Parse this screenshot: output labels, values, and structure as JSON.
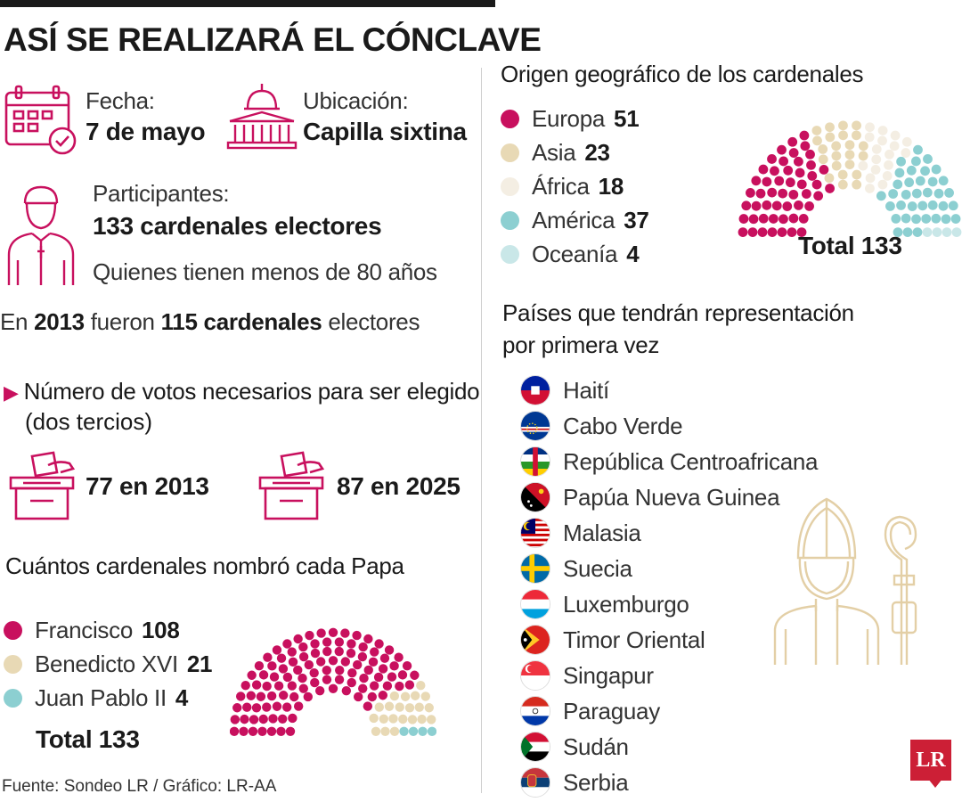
{
  "title": "ASÍ SE REALIZARÁ EL CÓNCLAVE",
  "fecha": {
    "label": "Fecha:",
    "value": "7 de mayo"
  },
  "ubicacion": {
    "label": "Ubicación:",
    "value": "Capilla sixtina"
  },
  "participantes": {
    "label": "Participantes:",
    "value": "133 cardenales electores",
    "note": "Quienes tienen menos de 80 años"
  },
  "electores_2013": {
    "pre": "En",
    "year": "2013",
    "mid": "fueron",
    "count": "115 cardenales",
    "post": "electores"
  },
  "votos": {
    "heading_line1": "Número de votos necesarios para ser elegido",
    "heading_line2": "(dos tercios)",
    "item1": "77 en 2013",
    "item2": "87 en 2025"
  },
  "papas": {
    "heading": "Cuántos cardenales nombró cada Papa",
    "total": "Total 133"
  },
  "origen": {
    "heading": "Origen geográfico de los cardenales",
    "total": "Total 133"
  },
  "paises": {
    "heading_line1": "Países que tendrán representación",
    "heading_line2": "por primera vez",
    "items": [
      "Haití",
      "Cabo Verde",
      "República Centroafricana",
      "Papúa Nueva Guinea",
      "Malasia",
      "Suecia",
      "Luxemburgo",
      "Timor Oriental",
      "Singapur",
      "Paraguay",
      "Sudán",
      "Serbia"
    ]
  },
  "source": "Fuente: Sondeo LR / Gráfico: LR-AA",
  "logo": "LR",
  "colors": {
    "accent": "#c8105e",
    "beige": "#e8d9b5",
    "cream": "#f4eee3",
    "teal": "#8ccfd1",
    "lightblue": "#c9e7e8",
    "icon_stroke": "#c8105e"
  },
  "chart_data": [
    {
      "type": "pie",
      "style": "parliament-hemicycle",
      "title": "Cuántos cardenales nombró cada Papa",
      "categories": [
        "Francisco",
        "Benedicto XVI",
        "Juan Pablo II"
      ],
      "values": [
        108,
        21,
        4
      ],
      "colors": [
        "#c8105e",
        "#e8d9b5",
        "#8ccfd1"
      ],
      "total": 133
    },
    {
      "type": "pie",
      "style": "parliament-hemicycle",
      "title": "Origen geográfico de los cardenales",
      "categories": [
        "Europa",
        "Asia",
        "África",
        "América",
        "Oceanía"
      ],
      "values": [
        51,
        23,
        18,
        37,
        4
      ],
      "colors": [
        "#c8105e",
        "#e8d9b5",
        "#f4eee3",
        "#8ccfd1",
        "#c9e7e8"
      ],
      "total": 133
    }
  ]
}
